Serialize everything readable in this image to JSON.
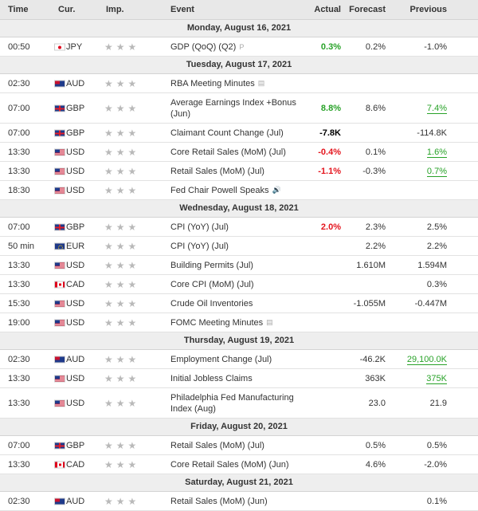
{
  "header": {
    "time": "Time",
    "currency": "Cur.",
    "importance": "Imp.",
    "event": "Event",
    "actual": "Actual",
    "forecast": "Forecast",
    "previous": "Previous"
  },
  "colors": {
    "positive": "#28a228",
    "negative": "#e4141d",
    "star": "#b9b9b9",
    "header_bg": "#e8e8e8",
    "day_bg": "#eeeeee"
  },
  "days": [
    {
      "label": "Monday, August 16, 2021",
      "rows": [
        {
          "time": "00:50",
          "flag": "jp",
          "cur": "JPY",
          "event": "GDP (QoQ) (Q2)",
          "icon": "preliminary-icon",
          "icon_glyph": "P",
          "actual": "0.3%",
          "actual_color": "green",
          "forecast": "0.2%",
          "previous": "-1.0%",
          "prev_color": "",
          "h": "h23"
        }
      ]
    },
    {
      "label": "Tuesday, August 17, 2021",
      "rows": [
        {
          "time": "02:30",
          "flag": "au",
          "cur": "AUD",
          "event": "RBA Meeting Minutes",
          "icon": "report-icon",
          "icon_glyph": "▤",
          "actual": "",
          "actual_color": "",
          "forecast": "",
          "previous": "",
          "prev_color": "",
          "h": "h23"
        },
        {
          "time": "07:00",
          "flag": "gb",
          "cur": "GBP",
          "event": "Average Earnings Index +Bonus (Jun)",
          "icon": "",
          "icon_glyph": "",
          "actual": "8.8%",
          "actual_color": "green",
          "forecast": "8.6%",
          "previous": "7.4%",
          "prev_color": "green",
          "h": "h37"
        },
        {
          "time": "07:00",
          "flag": "gb",
          "cur": "GBP",
          "event": "Claimant Count Change (Jul)",
          "icon": "",
          "icon_glyph": "",
          "actual": "-7.8K",
          "actual_color": "black",
          "forecast": "",
          "previous": "-114.8K",
          "prev_color": "",
          "h": "h23"
        },
        {
          "time": "13:30",
          "flag": "us",
          "cur": "USD",
          "event": "Core Retail Sales (MoM) (Jul)",
          "icon": "",
          "icon_glyph": "",
          "actual": "-0.4%",
          "actual_color": "red",
          "forecast": "0.1%",
          "previous": "1.6%",
          "prev_color": "green",
          "h": "h23"
        },
        {
          "time": "13:30",
          "flag": "us",
          "cur": "USD",
          "event": "Retail Sales (MoM) (Jul)",
          "icon": "",
          "icon_glyph": "",
          "actual": "-1.1%",
          "actual_color": "red",
          "forecast": "-0.3%",
          "previous": "0.7%",
          "prev_color": "green",
          "h": "h23"
        },
        {
          "time": "18:30",
          "flag": "us",
          "cur": "USD",
          "event": "Fed Chair Powell Speaks",
          "icon": "speech-icon",
          "icon_glyph": "🔊",
          "actual": "",
          "actual_color": "",
          "forecast": "",
          "previous": "",
          "prev_color": "",
          "h": "h23"
        }
      ]
    },
    {
      "label": "Wednesday, August 18, 2021",
      "rows": [
        {
          "time": "07:00",
          "flag": "gb",
          "cur": "GBP",
          "event": "CPI (YoY) (Jul)",
          "icon": "",
          "icon_glyph": "",
          "actual": "2.0%",
          "actual_color": "red",
          "forecast": "2.3%",
          "previous": "2.5%",
          "prev_color": "",
          "h": "h23"
        },
        {
          "time": "50 min",
          "flag": "eu",
          "cur": "EUR",
          "event": "CPI (YoY) (Jul)",
          "icon": "",
          "icon_glyph": "",
          "actual": "",
          "actual_color": "",
          "forecast": "2.2%",
          "previous": "2.2%",
          "prev_color": "",
          "h": "h23"
        },
        {
          "time": "13:30",
          "flag": "us",
          "cur": "USD",
          "event": "Building Permits (Jul)",
          "icon": "",
          "icon_glyph": "",
          "actual": "",
          "actual_color": "",
          "forecast": "1.610M",
          "previous": "1.594M",
          "prev_color": "",
          "h": "h23"
        },
        {
          "time": "13:30",
          "flag": "ca",
          "cur": "CAD",
          "event": "Core CPI (MoM) (Jul)",
          "icon": "",
          "icon_glyph": "",
          "actual": "",
          "actual_color": "",
          "forecast": "",
          "previous": "0.3%",
          "prev_color": "",
          "h": "h23"
        },
        {
          "time": "15:30",
          "flag": "us",
          "cur": "USD",
          "event": "Crude Oil Inventories",
          "icon": "",
          "icon_glyph": "",
          "actual": "",
          "actual_color": "",
          "forecast": "-1.055M",
          "previous": "-0.447M",
          "prev_color": "",
          "h": "h23"
        },
        {
          "time": "19:00",
          "flag": "us",
          "cur": "USD",
          "event": "FOMC Meeting Minutes",
          "icon": "report-icon",
          "icon_glyph": "▤",
          "actual": "",
          "actual_color": "",
          "forecast": "",
          "previous": "",
          "prev_color": "",
          "h": "h23"
        }
      ]
    },
    {
      "label": "Thursday, August 19, 2021",
      "rows": [
        {
          "time": "02:30",
          "flag": "au",
          "cur": "AUD",
          "event": "Employment Change (Jul)",
          "icon": "",
          "icon_glyph": "",
          "actual": "",
          "actual_color": "",
          "forecast": "-46.2K",
          "previous": "29,100.0K",
          "prev_color": "green",
          "h": "h23"
        },
        {
          "time": "13:30",
          "flag": "us",
          "cur": "USD",
          "event": "Initial Jobless Claims",
          "icon": "",
          "icon_glyph": "",
          "actual": "",
          "actual_color": "",
          "forecast": "363K",
          "previous": "375K",
          "prev_color": "green",
          "h": "h23"
        },
        {
          "time": "13:30",
          "flag": "us",
          "cur": "USD",
          "event": "Philadelphia Fed Manufacturing Index (Aug)",
          "icon": "",
          "icon_glyph": "",
          "actual": "",
          "actual_color": "",
          "forecast": "23.0",
          "previous": "21.9",
          "prev_color": "",
          "h": "h37"
        }
      ]
    },
    {
      "label": "Friday, August 20, 2021",
      "rows": [
        {
          "time": "07:00",
          "flag": "gb",
          "cur": "GBP",
          "event": "Retail Sales (MoM) (Jul)",
          "icon": "",
          "icon_glyph": "",
          "actual": "",
          "actual_color": "",
          "forecast": "0.5%",
          "previous": "0.5%",
          "prev_color": "",
          "h": "h23"
        },
        {
          "time": "13:30",
          "flag": "ca",
          "cur": "CAD",
          "event": "Core Retail Sales (MoM) (Jun)",
          "icon": "",
          "icon_glyph": "",
          "actual": "",
          "actual_color": "",
          "forecast": "4.6%",
          "previous": "-2.0%",
          "prev_color": "",
          "h": "h23"
        }
      ]
    },
    {
      "label": "Saturday, August 21, 2021",
      "rows": [
        {
          "time": "02:30",
          "flag": "au",
          "cur": "AUD",
          "event": "Retail Sales (MoM) (Jun)",
          "icon": "",
          "icon_glyph": "",
          "actual": "",
          "actual_color": "",
          "forecast": "",
          "previous": "0.1%",
          "prev_color": "",
          "h": "h23"
        }
      ]
    }
  ],
  "importance_stars": "★"
}
